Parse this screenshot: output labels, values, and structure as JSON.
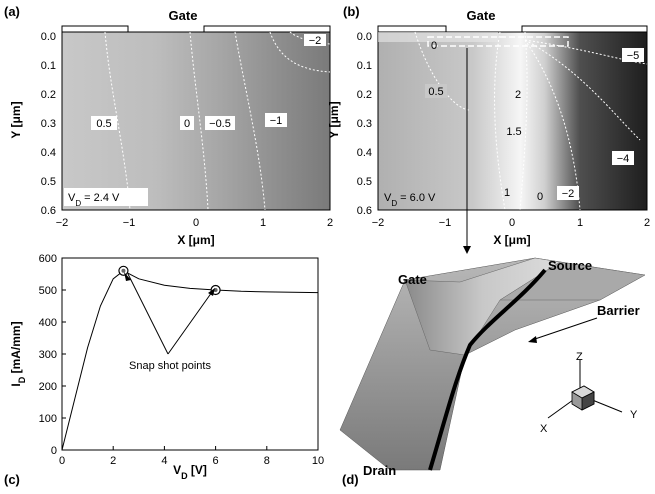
{
  "panels": {
    "a": {
      "label": "(a)",
      "gate": "Gate",
      "xlabel": "X [μm]",
      "ylabel": "Y [μm]",
      "xticks": [
        "−2",
        "−1",
        "0",
        "1",
        "2"
      ],
      "yticks": [
        "0.0",
        "0.1",
        "0.2",
        "0.3",
        "0.4",
        "0.5",
        "0.6"
      ],
      "vd": "V<sub>D</sub> = 2.4 V",
      "vd_text": "VD = 2.4 V",
      "contours": [
        "0.5",
        "0",
        "−0.5",
        "−1",
        "−2"
      ]
    },
    "b": {
      "label": "(b)",
      "gate": "Gate",
      "xlabel": "X [μm]",
      "ylabel": "Y [μm]",
      "xticks": [
        "−2",
        "−1",
        "0",
        "1",
        "2"
      ],
      "yticks": [
        "0.0",
        "0.1",
        "0.2",
        "0.3",
        "0.4",
        "0.5",
        "0.6"
      ],
      "vd_text": "VD = 6.0 V",
      "contours": [
        "0",
        "0.5",
        "2",
        "1.5",
        "1",
        "0",
        "−2",
        "−4",
        "−5"
      ]
    },
    "c": {
      "label": "(c)",
      "xlabel": "VD [V]",
      "ylabel": "ID [mA/mm]",
      "annotation": "Snap shot points",
      "chart_data": {
        "type": "line",
        "x": [
          0,
          0.5,
          1,
          1.5,
          2,
          2.4,
          3,
          4,
          5,
          6,
          7,
          8,
          9,
          10
        ],
        "y": [
          0,
          160,
          320,
          450,
          535,
          560,
          535,
          515,
          505,
          500,
          496,
          494,
          493,
          492
        ],
        "xlim": [
          0,
          10
        ],
        "ylim": [
          0,
          600
        ],
        "xticks": [
          "0",
          "2",
          "4",
          "6",
          "8",
          "10"
        ],
        "yticks": [
          "0",
          "100",
          "200",
          "300",
          "400",
          "500",
          "600"
        ],
        "snap_points": [
          {
            "x": 2.4,
            "y": 560
          },
          {
            "x": 6.0,
            "y": 500
          }
        ]
      }
    },
    "d": {
      "label": "(d)",
      "gate": "Gate",
      "source": "Source",
      "barrier": "Barrier",
      "drain": "Drain",
      "axes": [
        "Z",
        "X",
        "Y"
      ]
    }
  }
}
